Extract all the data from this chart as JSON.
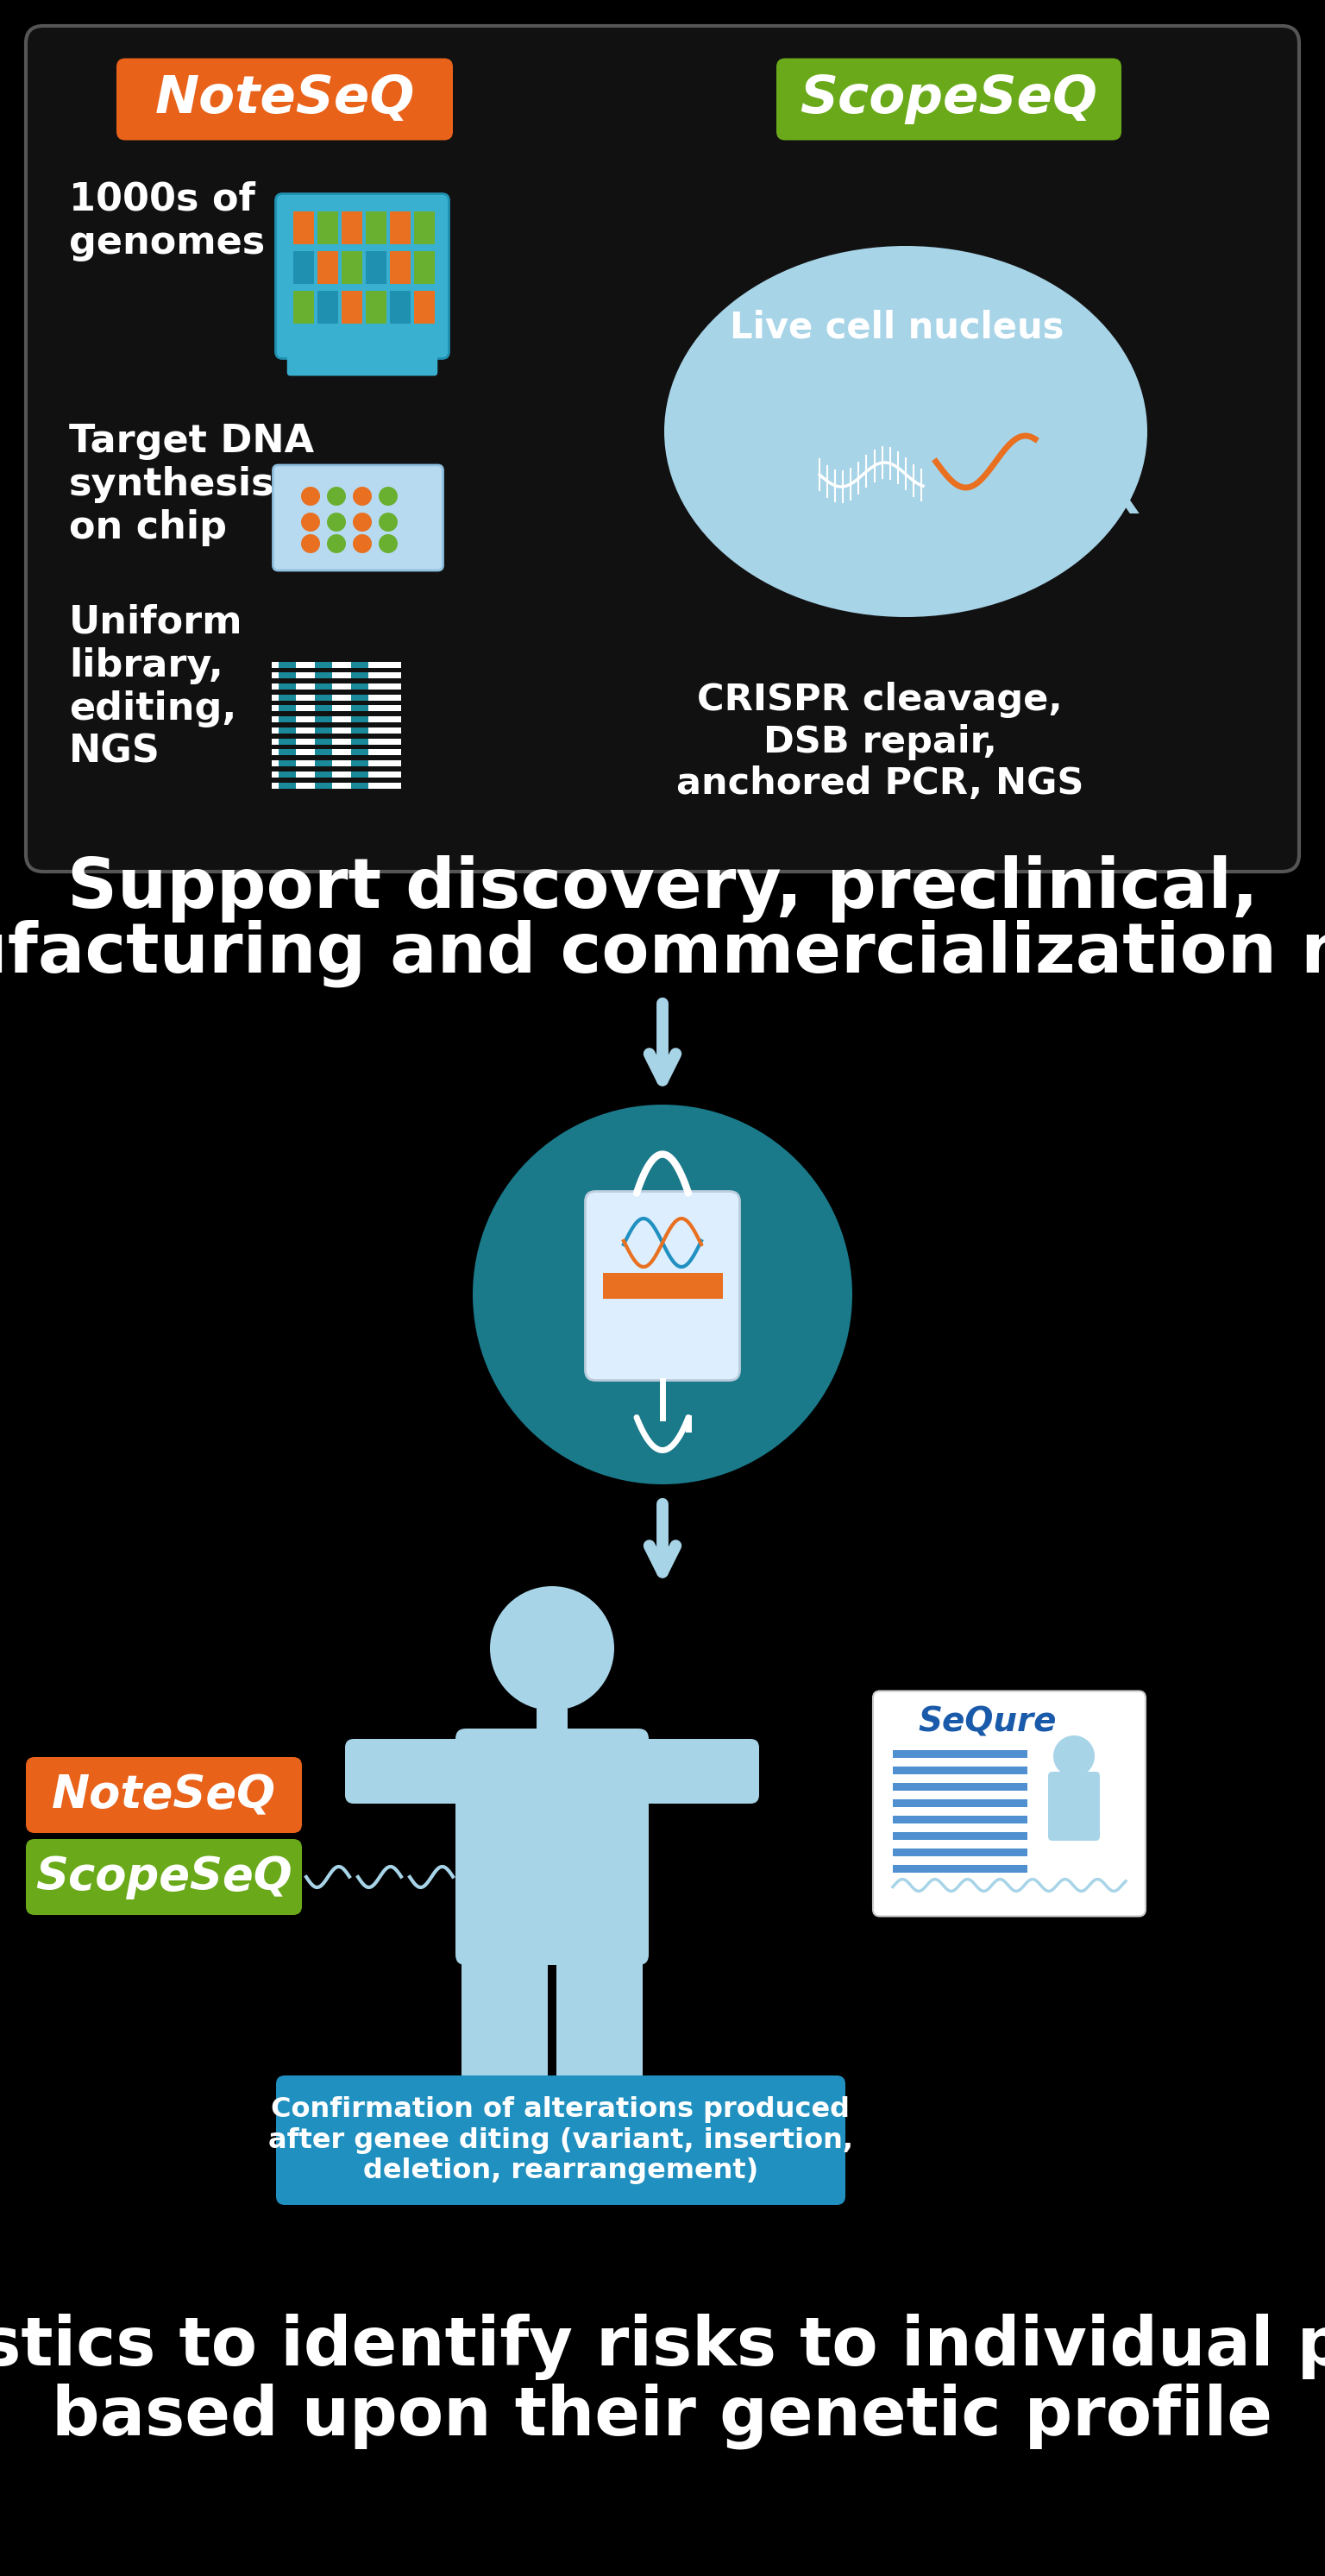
{
  "bg_color": "#000000",
  "noteseq_color": "#e8621a",
  "scopeseq_color": "#6aaa1a",
  "white": "#ffffff",
  "light_blue": "#a8d4e8",
  "teal": "#1a7a8a",
  "title1_line1": "Support discovery, preclinical,",
  "title1_line2": "manufacturing and commercialization needs",
  "title2_line1": "Diagnostics to identify risks to individual patients",
  "title2_line2": "based upon their genetic profile",
  "noteseq_label": "NoteSeQ",
  "scopeseq_label": "ScopeSeQ",
  "genome_text": "1000s of\ngenomes",
  "dna_text": "Target DNA\nsynthesis\non chip",
  "library_text": "Uniform\nlibrary,\nediting,\nNGS",
  "nucleus_text": "Live cell nucleus",
  "crispr_text": "CRISPR cleavage,\nDSB repair,\nanchored PCR, NGS",
  "confirm_text": "Confirmation of alterations produced\nafter genee diting (variant, insertion,\ndeletion, rearrangement)",
  "sequre_text": "SeQure"
}
